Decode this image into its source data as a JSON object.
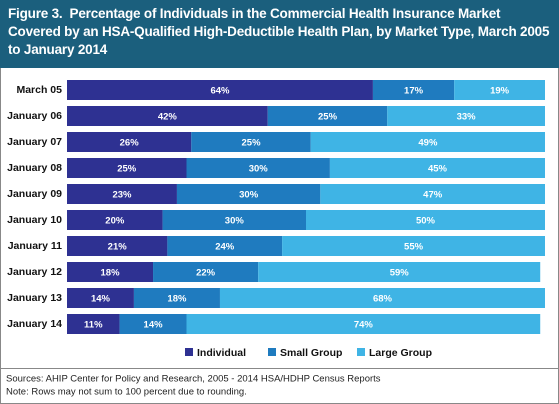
{
  "chart_data": {
    "type": "stacked-bar-horizontal",
    "title": "Figure 3.  Percentage of Individuals in the Commercial Health Insurance Market Covered by an HSA-Qualified High-Deductible Health Plan, by Market Type, March 2005 to January 2014",
    "categories": [
      "March 05",
      "January 06",
      "January 07",
      "January 08",
      "January 09",
      "January 10",
      "January 11",
      "January 12",
      "January 13",
      "January 14"
    ],
    "series": [
      {
        "name": "Individual",
        "color": "#2e3192",
        "values": [
          64,
          42,
          26,
          25,
          23,
          20,
          21,
          18,
          14,
          11
        ],
        "value_labels": [
          "64%",
          "42%",
          "26%",
          "25%",
          "23%",
          "20%",
          "21%",
          "18%",
          "14%",
          "11%"
        ]
      },
      {
        "name": "Small Group",
        "color": "#1f7bbf",
        "values": [
          17,
          25,
          25,
          30,
          30,
          30,
          24,
          22,
          18,
          14
        ],
        "value_labels": [
          "17%",
          "25%",
          "25%",
          "30%",
          "30%",
          "30%",
          "24%",
          "22%",
          "18%",
          "14%"
        ]
      },
      {
        "name": "Large Group",
        "color": "#3fb4e5",
        "values": [
          19,
          33,
          49,
          45,
          47,
          50,
          55,
          59,
          68,
          74
        ],
        "value_labels": [
          "19%",
          "33%",
          "49%",
          "45%",
          "47%",
          "50%",
          "55%",
          "59%",
          "68%",
          "74%"
        ]
      }
    ],
    "notes": [
      "Sources: AHIP Center for Policy and Research, 2005 - 2014 HSA/HDHP Census Reports",
      "Note: Rows may not sum to 100 percent due to rounding."
    ]
  }
}
